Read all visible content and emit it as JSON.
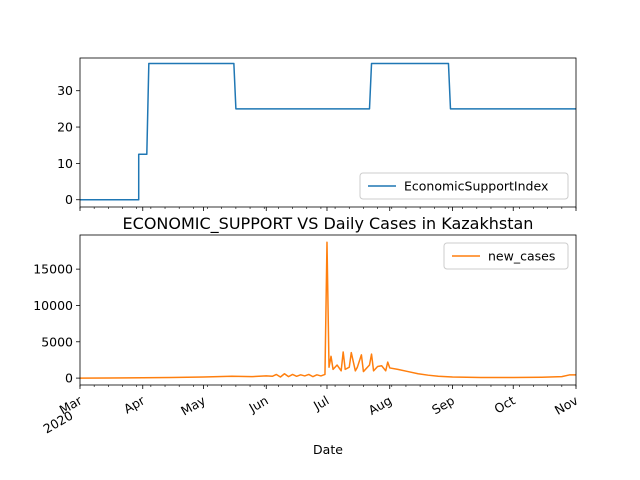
{
  "chart_data": [
    {
      "type": "line",
      "title": "",
      "xlabel": "",
      "ylabel": "",
      "ylim": [
        -2,
        39
      ],
      "yticks": [
        0,
        10,
        20,
        30
      ],
      "legend": "lower-right",
      "series": [
        {
          "name": "EconomicSupportIndex",
          "color": "#1f77b4",
          "points": [
            [
              "2020-03-01",
              0
            ],
            [
              "2020-03-30",
              0
            ],
            [
              "2020-03-30",
              12.5
            ],
            [
              "2020-04-03",
              12.5
            ],
            [
              "2020-04-04",
              37.5
            ],
            [
              "2020-05-16",
              37.5
            ],
            [
              "2020-05-17",
              25
            ],
            [
              "2020-07-22",
              25
            ],
            [
              "2020-07-23",
              37.5
            ],
            [
              "2020-08-30",
              37.5
            ],
            [
              "2020-08-31",
              25
            ],
            [
              "2020-11-01",
              25
            ]
          ]
        }
      ]
    },
    {
      "type": "line",
      "title": "ECONOMIC_SUPPORT VS Daily Cases in Kazakhstan",
      "xlabel": "Date",
      "ylabel": "",
      "ylim": [
        -950,
        19700
      ],
      "yticks": [
        0,
        5000,
        10000,
        15000
      ],
      "legend": "top-right",
      "series": [
        {
          "name": "new_cases",
          "color": "#ff7f0e",
          "points": [
            [
              "2020-03-01",
              0
            ],
            [
              "2020-03-15",
              5
            ],
            [
              "2020-04-01",
              40
            ],
            [
              "2020-04-15",
              80
            ],
            [
              "2020-05-01",
              150
            ],
            [
              "2020-05-15",
              250
            ],
            [
              "2020-05-25",
              200
            ],
            [
              "2020-06-01",
              300
            ],
            [
              "2020-06-04",
              250
            ],
            [
              "2020-06-06",
              500
            ],
            [
              "2020-06-08",
              150
            ],
            [
              "2020-06-10",
              600
            ],
            [
              "2020-06-12",
              200
            ],
            [
              "2020-06-14",
              500
            ],
            [
              "2020-06-16",
              250
            ],
            [
              "2020-06-18",
              450
            ],
            [
              "2020-06-20",
              300
            ],
            [
              "2020-06-22",
              500
            ],
            [
              "2020-06-24",
              200
            ],
            [
              "2020-06-26",
              450
            ],
            [
              "2020-06-28",
              300
            ],
            [
              "2020-06-30",
              500
            ],
            [
              "2020-07-01",
              18700
            ],
            [
              "2020-07-02",
              1500
            ],
            [
              "2020-07-03",
              3000
            ],
            [
              "2020-07-04",
              1200
            ],
            [
              "2020-07-06",
              1800
            ],
            [
              "2020-07-08",
              1000
            ],
            [
              "2020-07-09",
              3600
            ],
            [
              "2020-07-10",
              1200
            ],
            [
              "2020-07-12",
              1500
            ],
            [
              "2020-07-13",
              3500
            ],
            [
              "2020-07-15",
              1000
            ],
            [
              "2020-07-16",
              1500
            ],
            [
              "2020-07-18",
              3200
            ],
            [
              "2020-07-19",
              900
            ],
            [
              "2020-07-22",
              1800
            ],
            [
              "2020-07-23",
              3300
            ],
            [
              "2020-07-24",
              1000
            ],
            [
              "2020-07-26",
              1600
            ],
            [
              "2020-07-28",
              1700
            ],
            [
              "2020-07-30",
              1000
            ],
            [
              "2020-07-31",
              2200
            ],
            [
              "2020-08-01",
              1400
            ],
            [
              "2020-08-05",
              1200
            ],
            [
              "2020-08-10",
              900
            ],
            [
              "2020-08-15",
              600
            ],
            [
              "2020-08-20",
              400
            ],
            [
              "2020-08-25",
              250
            ],
            [
              "2020-09-01",
              150
            ],
            [
              "2020-09-15",
              80
            ],
            [
              "2020-10-01",
              90
            ],
            [
              "2020-10-15",
              120
            ],
            [
              "2020-10-25",
              200
            ],
            [
              "2020-10-29",
              450
            ],
            [
              "2020-11-01",
              450
            ]
          ]
        }
      ]
    }
  ],
  "shared_x": {
    "range": [
      "2020-03-01",
      "2020-11-01"
    ],
    "ticks": [
      {
        "date": "2020-03-01",
        "label": "Mar",
        "sublabel": "2020"
      },
      {
        "date": "2020-04-01",
        "label": "Apr"
      },
      {
        "date": "2020-05-01",
        "label": "May"
      },
      {
        "date": "2020-06-01",
        "label": "Jun"
      },
      {
        "date": "2020-07-01",
        "label": "Jul"
      },
      {
        "date": "2020-08-01",
        "label": "Aug"
      },
      {
        "date": "2020-09-01",
        "label": "Sep"
      },
      {
        "date": "2020-10-01",
        "label": "Oct"
      },
      {
        "date": "2020-11-01",
        "label": "Nov"
      }
    ]
  }
}
